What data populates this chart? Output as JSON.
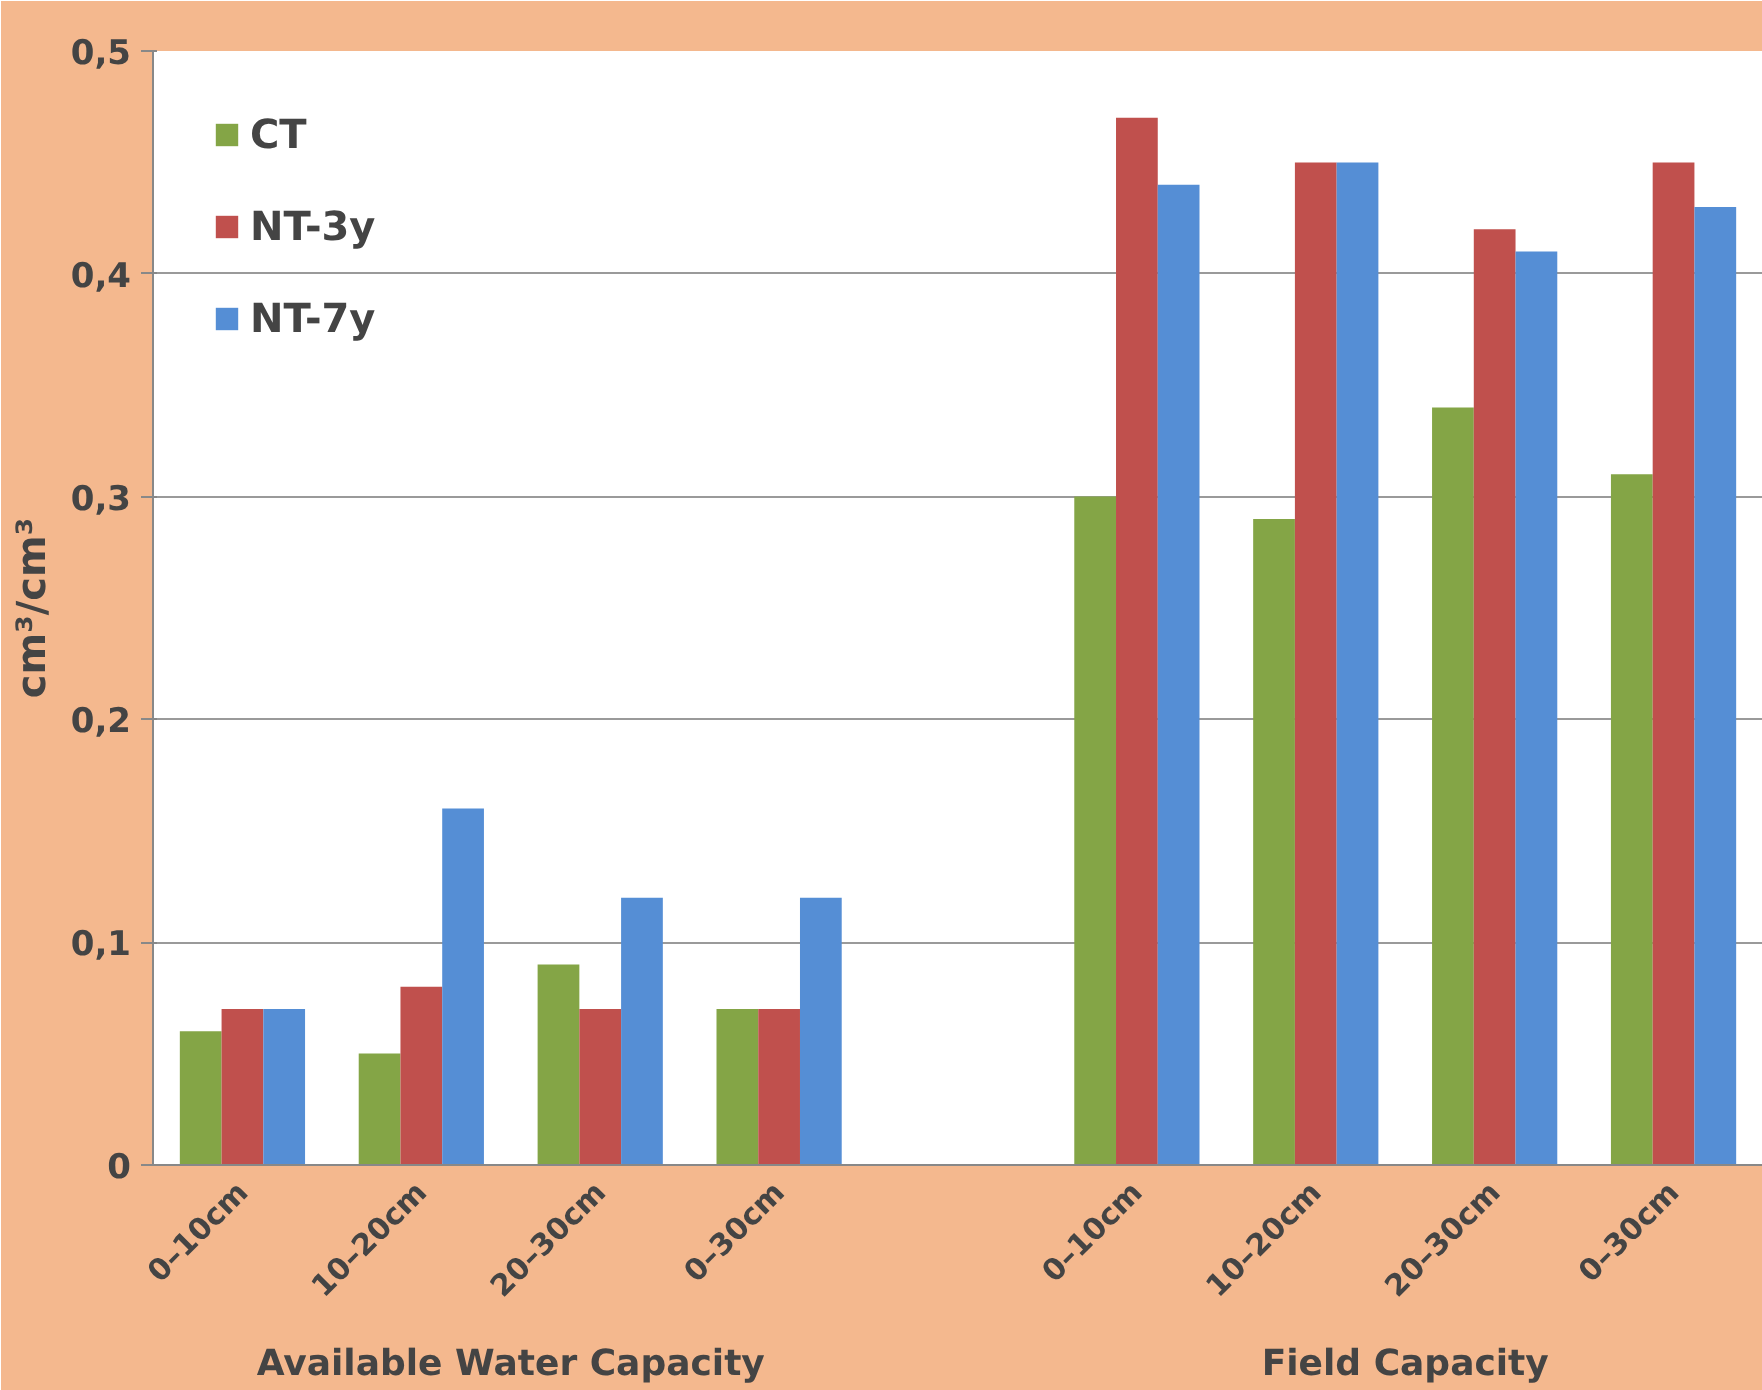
{
  "chart_data": {
    "type": "bar",
    "ylabel": "cm³/cm³",
    "categories": [
      "0–10cm",
      "10–20cm",
      "20–30cm",
      "0–30cm",
      null,
      "0–10cm",
      "10–20cm",
      "20–30cm",
      "0–30cm"
    ],
    "series": [
      {
        "name": "CT",
        "color": "#84a546",
        "values": [
          0.06,
          0.05,
          0.09,
          0.07,
          null,
          0.3,
          0.29,
          0.34,
          0.31
        ]
      },
      {
        "name": "NT-3y",
        "color": "#c0504d",
        "values": [
          0.07,
          0.08,
          0.07,
          0.07,
          null,
          0.47,
          0.45,
          0.42,
          0.45
        ]
      },
      {
        "name": "NT-7y",
        "color": "#558ed5",
        "values": [
          0.07,
          0.16,
          0.12,
          0.12,
          null,
          0.44,
          0.45,
          0.41,
          0.43
        ]
      }
    ],
    "ylim": [
      0,
      0.5
    ],
    "yticks": [
      0,
      {
        "value": 0.1,
        "label": "0,1"
      },
      {
        "value": 0.2,
        "label": "0,2"
      },
      {
        "value": 0.3,
        "label": "0,3"
      },
      {
        "value": 0.4,
        "label": "0,4"
      },
      {
        "value": 0.5,
        "label": "0,5"
      }
    ],
    "grid": "y",
    "legend": "top left",
    "annotations": [
      "Available Water Capacity",
      "Field Capacity"
    ]
  }
}
